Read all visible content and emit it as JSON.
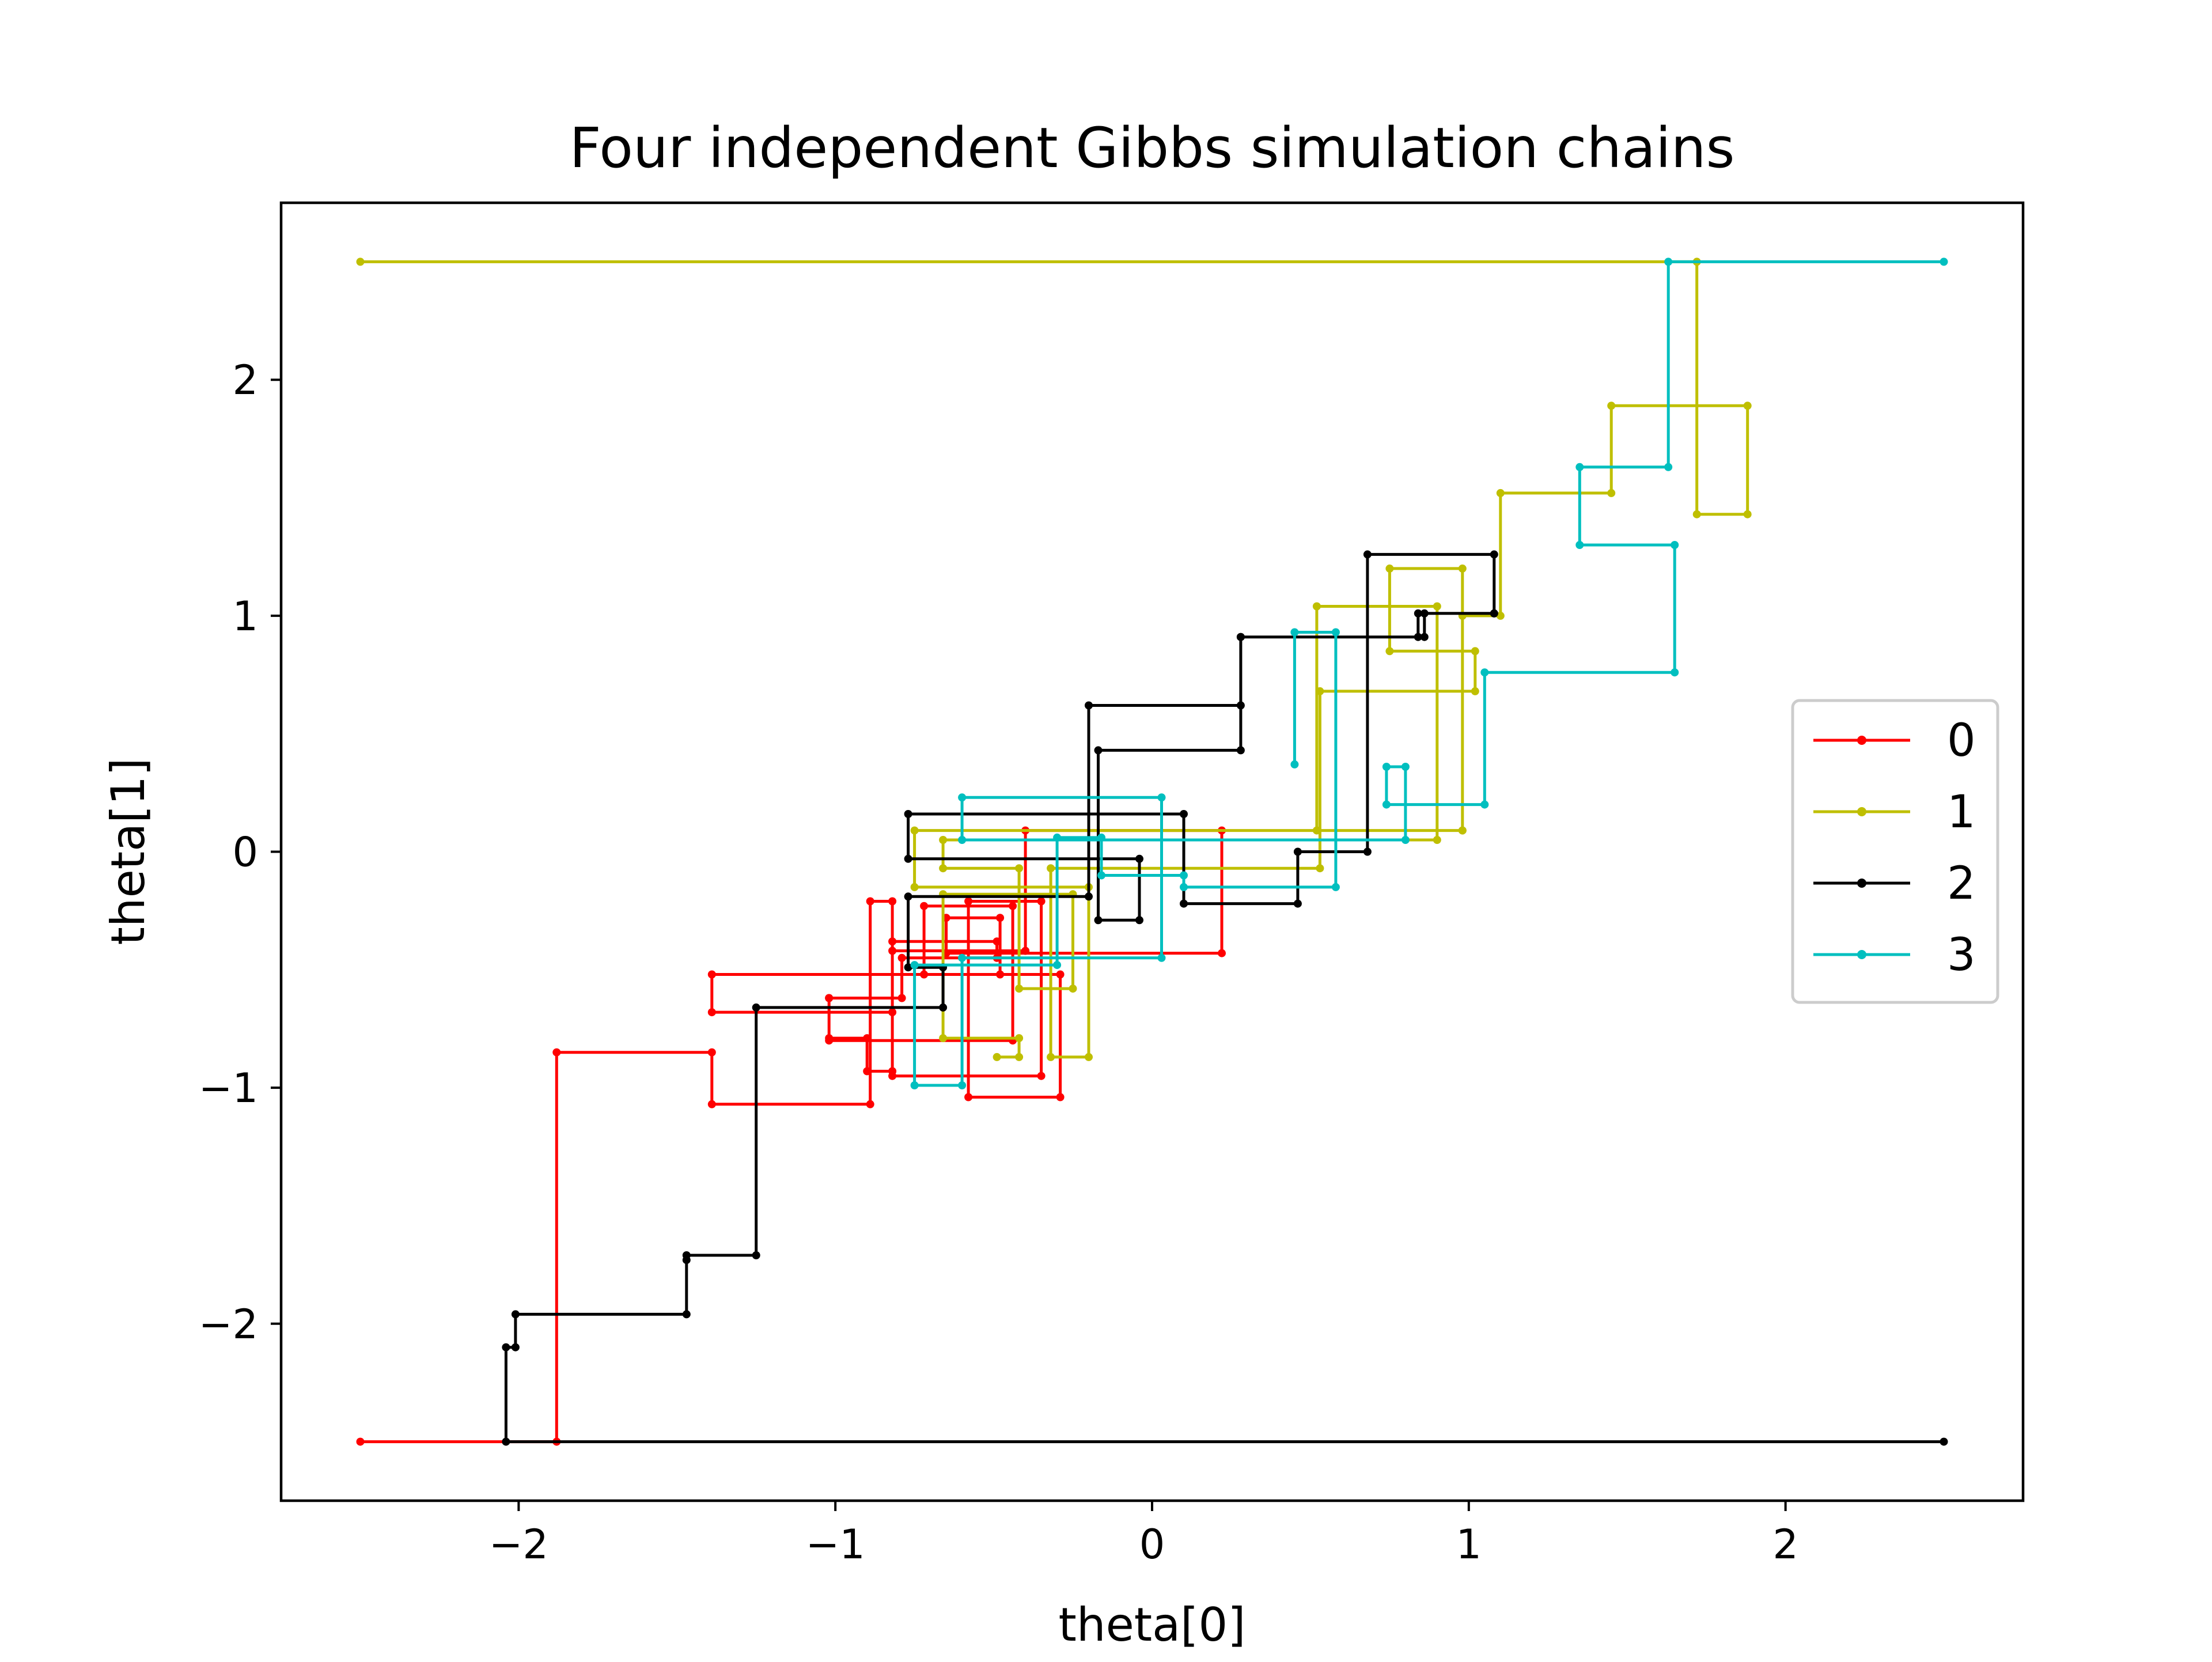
{
  "chart_data": {
    "type": "line",
    "title": "Four independent Gibbs simulation chains",
    "xlabel": "theta[0]",
    "ylabel": "theta[1]",
    "xlim": [
      -2.75,
      2.75
    ],
    "ylim": [
      -2.75,
      2.75
    ],
    "xticks": [
      {
        "value": -2,
        "label": "−2"
      },
      {
        "value": -1,
        "label": "−1"
      },
      {
        "value": 0,
        "label": "0"
      },
      {
        "value": 1,
        "label": "1"
      },
      {
        "value": 2,
        "label": "2"
      }
    ],
    "yticks": [
      {
        "value": -2,
        "label": "−2"
      },
      {
        "value": -1,
        "label": "−1"
      },
      {
        "value": 0,
        "label": "0"
      },
      {
        "value": 1,
        "label": "1"
      },
      {
        "value": 2,
        "label": "2"
      }
    ],
    "grid": false,
    "legend_position": "right",
    "series": [
      {
        "name": "0",
        "color": "#ff0000",
        "points": [
          [
            -2.5,
            -2.5
          ],
          [
            -1.88,
            -2.5
          ],
          [
            -1.88,
            -0.85
          ],
          [
            -1.39,
            -0.85
          ],
          [
            -1.39,
            -1.07
          ],
          [
            -0.89,
            -1.07
          ],
          [
            -0.89,
            -0.21
          ],
          [
            -0.82,
            -0.21
          ],
          [
            -0.82,
            -0.93
          ],
          [
            -0.9,
            -0.93
          ],
          [
            -0.9,
            -0.79
          ],
          [
            -1.02,
            -0.79
          ],
          [
            -1.02,
            -0.62
          ],
          [
            -0.79,
            -0.62
          ],
          [
            -0.79,
            -0.45
          ],
          [
            -0.49,
            -0.45
          ],
          [
            -0.49,
            -0.38
          ],
          [
            -0.82,
            -0.38
          ],
          [
            -0.82,
            -0.95
          ],
          [
            -0.35,
            -0.95
          ],
          [
            -0.35,
            -0.21
          ],
          [
            -0.58,
            -0.21
          ],
          [
            -0.58,
            -1.04
          ],
          [
            -0.29,
            -1.04
          ],
          [
            -0.29,
            -0.52
          ],
          [
            -1.39,
            -0.52
          ],
          [
            -1.39,
            -0.68
          ],
          [
            -0.82,
            -0.68
          ],
          [
            -0.82,
            -0.42
          ],
          [
            -0.4,
            -0.42
          ],
          [
            -0.4,
            0.09
          ],
          [
            0.22,
            0.09
          ],
          [
            0.22,
            -0.43
          ],
          [
            -0.65,
            -0.43
          ],
          [
            -0.65,
            -0.28
          ],
          [
            -0.48,
            -0.28
          ],
          [
            -0.48,
            -0.52
          ],
          [
            -0.72,
            -0.52
          ],
          [
            -0.72,
            -0.23
          ],
          [
            -0.44,
            -0.23
          ],
          [
            -0.44,
            -0.8
          ],
          [
            -1.02,
            -0.8
          ],
          [
            -1.02,
            -0.62
          ]
        ]
      },
      {
        "name": "1",
        "color": "#bfbf00",
        "points": [
          [
            -2.5,
            2.5
          ],
          [
            1.72,
            2.5
          ],
          [
            1.72,
            1.43
          ],
          [
            1.88,
            1.43
          ],
          [
            1.88,
            1.89
          ],
          [
            1.45,
            1.89
          ],
          [
            1.45,
            1.52
          ],
          [
            1.1,
            1.52
          ],
          [
            1.1,
            1.0
          ],
          [
            0.98,
            1.0
          ],
          [
            0.98,
            0.09
          ],
          [
            -0.75,
            0.09
          ],
          [
            -0.75,
            -0.15
          ],
          [
            -0.2,
            -0.15
          ],
          [
            -0.2,
            -0.87
          ],
          [
            -0.32,
            -0.87
          ],
          [
            -0.32,
            -0.07
          ],
          [
            0.53,
            -0.07
          ],
          [
            0.53,
            0.68
          ],
          [
            1.02,
            0.68
          ],
          [
            1.02,
            0.85
          ],
          [
            0.75,
            0.85
          ],
          [
            0.75,
            1.2
          ],
          [
            0.98,
            1.2
          ],
          [
            0.98,
            0.09
          ],
          [
            0.52,
            0.09
          ],
          [
            0.52,
            1.04
          ],
          [
            0.9,
            1.04
          ],
          [
            0.9,
            0.05
          ],
          [
            -0.66,
            0.05
          ],
          [
            -0.66,
            -0.07
          ],
          [
            -0.42,
            -0.07
          ],
          [
            -0.42,
            -0.58
          ],
          [
            -0.25,
            -0.58
          ],
          [
            -0.25,
            -0.18
          ],
          [
            -0.66,
            -0.18
          ],
          [
            -0.66,
            -0.79
          ],
          [
            -0.42,
            -0.79
          ],
          [
            -0.42,
            -0.87
          ],
          [
            -0.49,
            -0.87
          ]
        ]
      },
      {
        "name": "2",
        "color": "#000000",
        "points": [
          [
            2.5,
            -2.5
          ],
          [
            -2.04,
            -2.5
          ],
          [
            -2.04,
            -2.1
          ],
          [
            -2.01,
            -2.1
          ],
          [
            -2.01,
            -1.96
          ],
          [
            -1.47,
            -1.96
          ],
          [
            -1.47,
            -1.73
          ],
          [
            -1.47,
            -1.71
          ],
          [
            -1.25,
            -1.71
          ],
          [
            -1.25,
            -0.66
          ],
          [
            -0.66,
            -0.66
          ],
          [
            -0.66,
            -0.49
          ],
          [
            -0.77,
            -0.49
          ],
          [
            -0.77,
            -0.19
          ],
          [
            -0.2,
            -0.19
          ],
          [
            -0.2,
            0.62
          ],
          [
            0.28,
            0.62
          ],
          [
            0.28,
            0.91
          ],
          [
            0.86,
            0.91
          ],
          [
            0.86,
            1.01
          ],
          [
            1.08,
            1.01
          ],
          [
            1.08,
            1.26
          ],
          [
            0.68,
            1.26
          ],
          [
            0.68,
            0.0
          ],
          [
            0.46,
            0.0
          ],
          [
            0.46,
            -0.22
          ],
          [
            0.1,
            -0.22
          ],
          [
            0.1,
            0.16
          ],
          [
            -0.77,
            0.16
          ],
          [
            -0.77,
            -0.03
          ],
          [
            -0.04,
            -0.03
          ],
          [
            -0.04,
            -0.29
          ],
          [
            -0.17,
            -0.29
          ],
          [
            -0.17,
            0.43
          ],
          [
            0.28,
            0.43
          ],
          [
            0.28,
            0.91
          ],
          [
            0.84,
            0.91
          ],
          [
            0.84,
            1.01
          ],
          [
            1.08,
            1.01
          ]
        ]
      },
      {
        "name": "3",
        "color": "#00bfbf",
        "points": [
          [
            2.5,
            2.5
          ],
          [
            1.63,
            2.5
          ],
          [
            1.63,
            1.63
          ],
          [
            1.35,
            1.63
          ],
          [
            1.35,
            1.3
          ],
          [
            1.65,
            1.3
          ],
          [
            1.65,
            0.76
          ],
          [
            1.05,
            0.76
          ],
          [
            1.05,
            0.2
          ],
          [
            0.74,
            0.2
          ],
          [
            0.74,
            0.36
          ],
          [
            0.8,
            0.36
          ],
          [
            0.8,
            0.05
          ],
          [
            -0.6,
            0.05
          ],
          [
            -0.6,
            0.23
          ],
          [
            0.03,
            0.23
          ],
          [
            0.03,
            -0.45
          ],
          [
            -0.6,
            -0.45
          ],
          [
            -0.6,
            -0.99
          ],
          [
            -0.75,
            -0.99
          ],
          [
            -0.75,
            -0.48
          ],
          [
            -0.3,
            -0.48
          ],
          [
            -0.3,
            0.06
          ],
          [
            -0.16,
            0.06
          ],
          [
            -0.16,
            -0.1
          ],
          [
            0.1,
            -0.1
          ],
          [
            0.1,
            -0.15
          ],
          [
            0.58,
            -0.15
          ],
          [
            0.58,
            0.93
          ],
          [
            0.45,
            0.93
          ],
          [
            0.45,
            0.37
          ]
        ]
      }
    ]
  }
}
